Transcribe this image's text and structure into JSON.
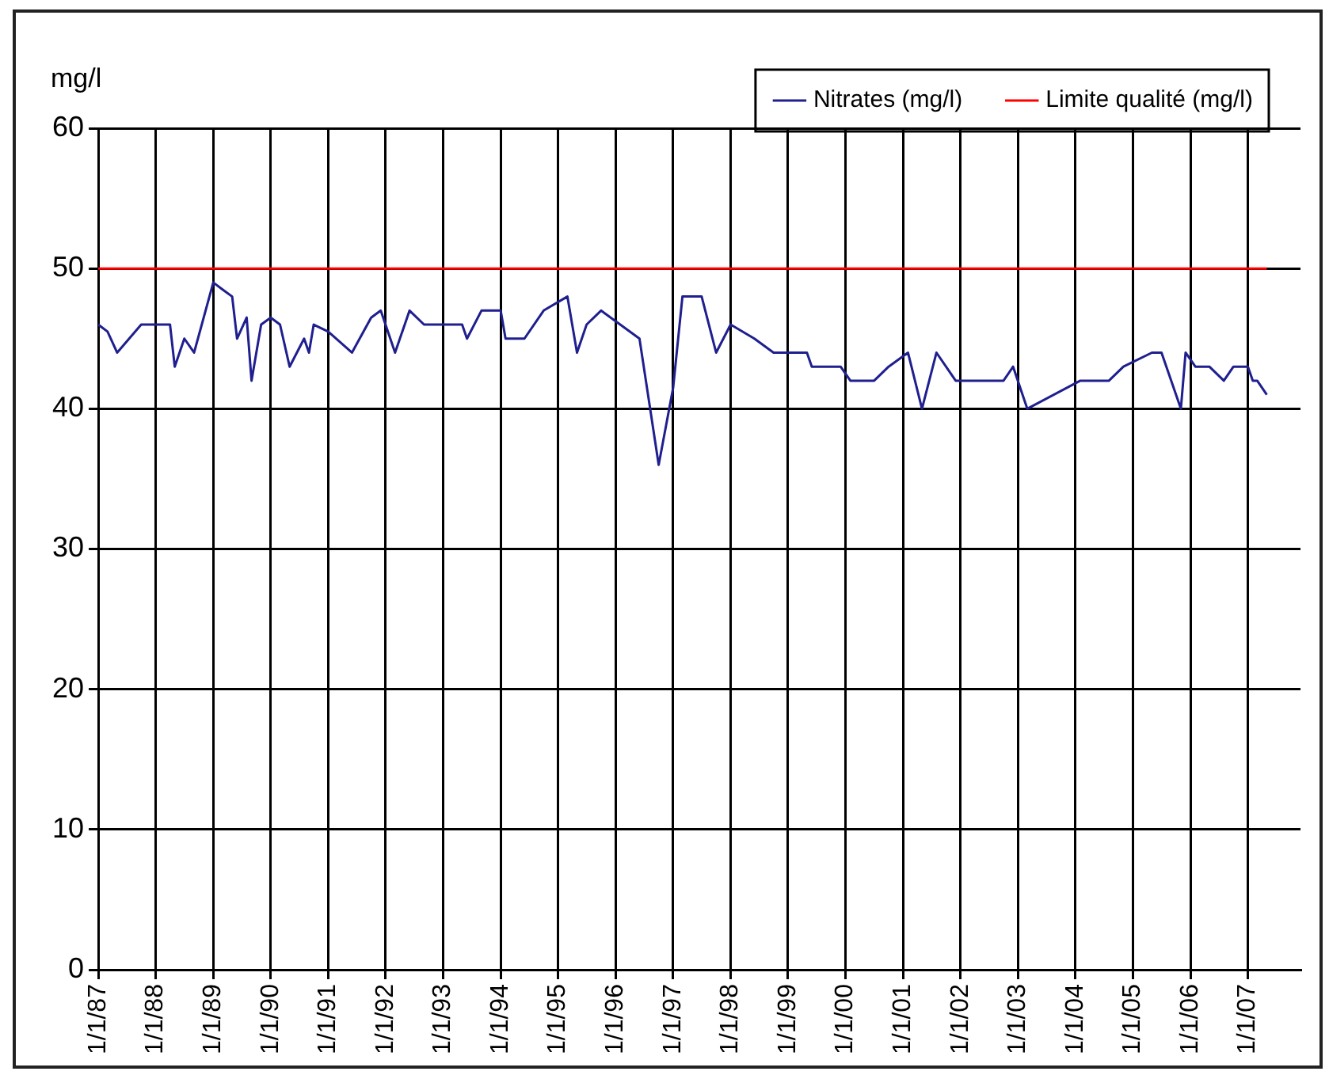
{
  "chart_data": {
    "type": "line",
    "ylabel": "mg/l",
    "xlim": [
      "1987-01",
      "2007-12"
    ],
    "xticks": [
      {
        "value": "1987-01",
        "label": "1/1/87"
      },
      {
        "value": "1988-01",
        "label": "1/1/88"
      },
      {
        "value": "1989-01",
        "label": "1/1/89"
      },
      {
        "value": "1990-01",
        "label": "1/1/90"
      },
      {
        "value": "1991-01",
        "label": "1/1/91"
      },
      {
        "value": "1992-01",
        "label": "1/1/92"
      },
      {
        "value": "1993-01",
        "label": "1/1/93"
      },
      {
        "value": "1994-01",
        "label": "1/1/94"
      },
      {
        "value": "1995-01",
        "label": "1/1/95"
      },
      {
        "value": "1996-01",
        "label": "1/1/96"
      },
      {
        "value": "1997-01",
        "label": "1/1/97"
      },
      {
        "value": "1998-01",
        "label": "1/1/98"
      },
      {
        "value": "1999-01",
        "label": "1/1/99"
      },
      {
        "value": "2000-01",
        "label": "1/1/00"
      },
      {
        "value": "2001-01",
        "label": "1/1/01"
      },
      {
        "value": "2002-01",
        "label": "1/1/02"
      },
      {
        "value": "2003-01",
        "label": "1/1/03"
      },
      {
        "value": "2004-01",
        "label": "1/1/04"
      },
      {
        "value": "2005-01",
        "label": "1/1/05"
      },
      {
        "value": "2006-01",
        "label": "1/1/06"
      },
      {
        "value": "2007-01",
        "label": "1/1/07"
      }
    ],
    "ylim": [
      0,
      60
    ],
    "yticks": [
      0,
      10,
      20,
      30,
      40,
      50,
      60
    ],
    "grid": true,
    "legend": "top right",
    "marker": "none",
    "line_style": "solid",
    "series": [
      {
        "name": "Nitrates (mg/l)",
        "color": "#1f1f8f",
        "x": [
          "1987-01",
          "1987-03",
          "1987-05",
          "1987-10",
          "1988-04",
          "1988-05",
          "1988-07",
          "1988-09",
          "1989-01",
          "1989-03",
          "1989-05",
          "1989-06",
          "1989-08",
          "1989-09",
          "1989-11",
          "1990-01",
          "1990-03",
          "1990-05",
          "1990-08",
          "1990-09",
          "1990-10",
          "1991-01",
          "1991-06",
          "1991-10",
          "1991-12",
          "1992-03",
          "1992-06",
          "1992-09",
          "1993-05",
          "1993-06",
          "1993-09",
          "1994-01",
          "1994-02",
          "1994-06",
          "1994-10",
          "1995-03",
          "1995-05",
          "1995-07",
          "1995-10",
          "1996-06",
          "1996-10",
          "1997-01",
          "1997-03",
          "1997-07",
          "1997-10",
          "1998-01",
          "1998-06",
          "1998-10",
          "1999-05",
          "1999-06",
          "1999-12",
          "2000-02",
          "2000-07",
          "2000-10",
          "2001-02",
          "2001-05",
          "2001-08",
          "2001-12",
          "2002-10",
          "2002-12",
          "2003-03",
          "2004-02",
          "2004-08",
          "2004-11",
          "2005-05",
          "2005-07",
          "2005-11",
          "2005-12",
          "2006-02",
          "2006-05",
          "2006-08",
          "2006-10",
          "2007-01",
          "2007-02",
          "2007-03",
          "2007-05"
        ],
        "values": [
          46,
          45.5,
          44,
          46,
          46,
          43,
          45,
          44,
          49,
          48.5,
          48,
          45,
          46.5,
          42,
          46,
          46.5,
          46,
          43,
          45,
          44,
          46,
          45.5,
          44,
          46.5,
          47,
          44,
          47,
          46,
          46,
          45,
          47,
          47,
          45,
          45,
          47,
          48,
          44,
          46,
          47,
          45,
          36,
          41.5,
          48,
          48,
          44,
          46,
          45,
          44,
          44,
          43,
          43,
          42,
          42,
          43,
          44,
          40,
          44,
          42,
          42,
          43,
          40,
          42,
          42,
          43,
          44,
          44,
          40,
          44,
          43,
          43,
          42,
          43,
          43,
          42,
          42,
          41
        ]
      },
      {
        "name": "Limite qualité (mg/l)",
        "color": "#ff0000",
        "x": [
          "1987-01",
          "2007-05"
        ],
        "values": [
          50,
          50
        ]
      }
    ]
  }
}
